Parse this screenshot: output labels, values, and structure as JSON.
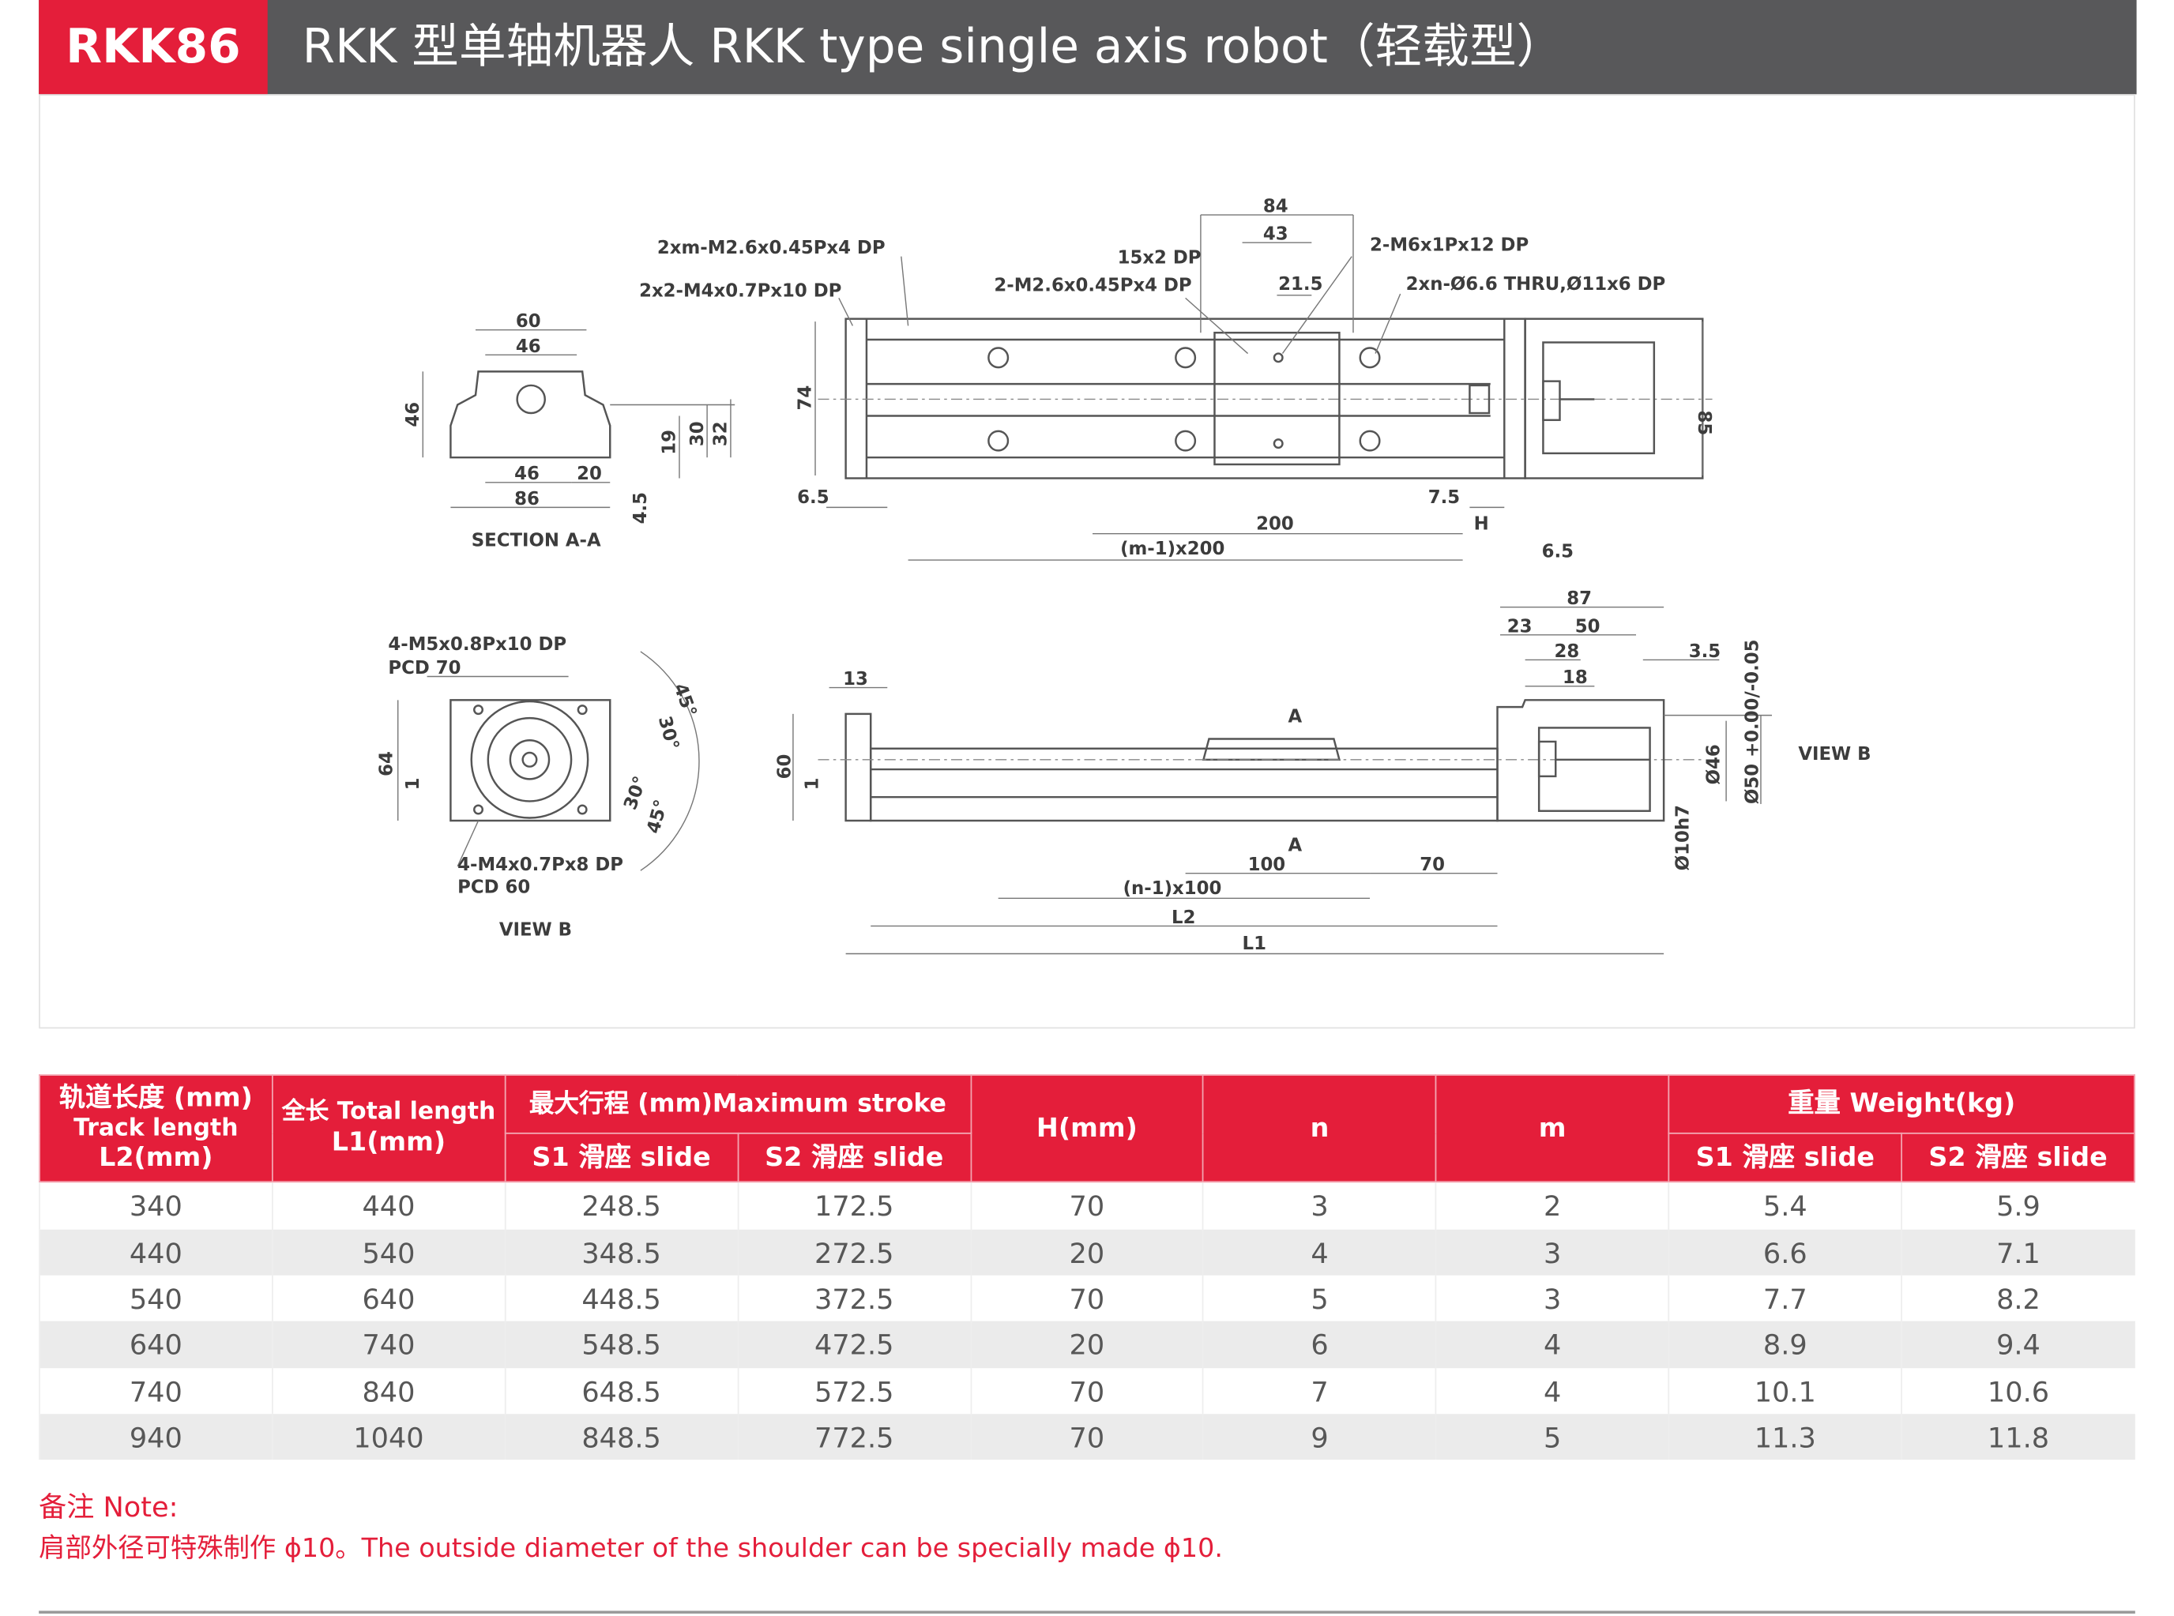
{
  "header": {
    "model": "RKK86",
    "title": "RKK 型单轴机器人 RKK type single axis robot（轻载型）"
  },
  "colors": {
    "brand_red": "#e41e3a",
    "title_gray": "#58585a"
  },
  "drawing": {
    "top_view": {
      "labels": [
        "2xm-M2.6x0.45Px4 DP",
        "2x2-M4x0.7Px10 DP",
        "15x2 DP",
        "2-M2.6x0.45Px4 DP",
        "84",
        "43",
        "21.5",
        "2-M6x1Px12 DP",
        "2xn-Ø6.6 THRU,Ø11x6 DP",
        "74",
        "85",
        "6.5",
        "7.5",
        "H",
        "200",
        "(m-1)x200",
        "6.5"
      ]
    },
    "section_aa": {
      "labels": [
        "60",
        "46",
        "46",
        "46",
        "20",
        "86",
        "19",
        "30",
        "32",
        "4.5"
      ],
      "caption": "SECTION A-A"
    },
    "view_b": {
      "labels": [
        "4-M5x0.8Px10 DP",
        "PCD 70",
        "64",
        "1",
        "45°",
        "30°",
        "30°",
        "45°",
        "4-M4x0.7Px8 DP",
        "PCD 60"
      ],
      "caption": "VIEW B"
    },
    "side_view": {
      "labels": [
        "13",
        "60",
        "1",
        "A",
        "A",
        "100",
        "70",
        "(n-1)x100",
        "L2",
        "L1",
        "87",
        "23",
        "50",
        "28",
        "18",
        "3.5",
        "Ø46",
        "Ø50 +0.00/-0.05",
        "Ø10h7",
        "VIEW B"
      ]
    }
  },
  "table": {
    "headers": {
      "track": [
        "轨道长度 (mm)",
        "Track length",
        "L2(mm)"
      ],
      "total": [
        "全长 Total length",
        "L1(mm)"
      ],
      "stroke": "最大行程 (mm)Maximum stroke",
      "h": "H(mm)",
      "n": "n",
      "m": "m",
      "weight": "重量 Weight(kg)",
      "s1": "S1 滑座 slide",
      "s2": "S2 滑座 slide"
    },
    "rows": [
      [
        "340",
        "440",
        "248.5",
        "172.5",
        "70",
        "3",
        "2",
        "5.4",
        "5.9"
      ],
      [
        "440",
        "540",
        "348.5",
        "272.5",
        "20",
        "4",
        "3",
        "6.6",
        "7.1"
      ],
      [
        "540",
        "640",
        "448.5",
        "372.5",
        "70",
        "5",
        "3",
        "7.7",
        "8.2"
      ],
      [
        "640",
        "740",
        "548.5",
        "472.5",
        "20",
        "6",
        "4",
        "8.9",
        "9.4"
      ],
      [
        "740",
        "840",
        "648.5",
        "572.5",
        "70",
        "7",
        "4",
        "10.1",
        "10.6"
      ],
      [
        "940",
        "1040",
        "848.5",
        "772.5",
        "70",
        "9",
        "5",
        "11.3",
        "11.8"
      ]
    ]
  },
  "note": {
    "heading": "备注 Note:",
    "text": "肩部外径可特殊制作 ϕ10。The outside diameter of the shoulder can be specially made ϕ10."
  }
}
